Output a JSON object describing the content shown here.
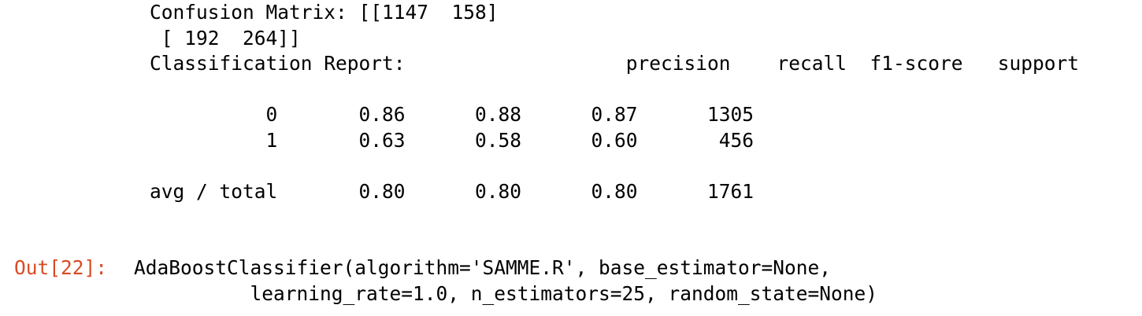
{
  "cell": {
    "stdout": "Confusion Matrix: [[1147  158]\n [ 192  264]]\nClassification Report:                   precision    recall  f1-score   support\n\n          0       0.86      0.88      0.87      1305\n          1       0.63      0.58      0.60       456\n\navg / total       0.80      0.80      0.80      1761\n",
    "output": {
      "prompt": "Out[22]:",
      "text": "AdaBoostClassifier(algorithm='SAMME.R', base_estimator=None,\n          learning_rate=1.0, n_estimators=25, random_state=None)"
    }
  },
  "colors": {
    "out_prompt": "#d84b24",
    "text": "#000000",
    "background": "#ffffff"
  }
}
